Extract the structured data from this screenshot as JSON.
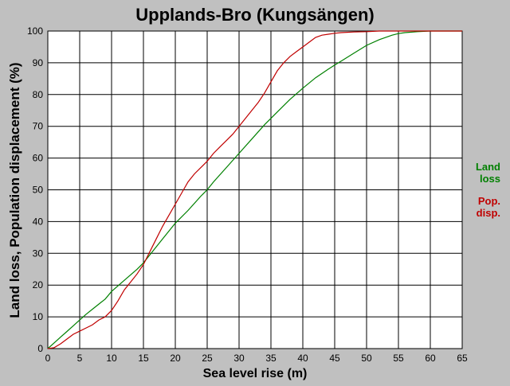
{
  "chart_data": {
    "type": "line",
    "title": "Upplands-Bro (Kungsängen)",
    "xlabel": "Sea level rise (m)",
    "ylabel": "Land loss, Population displacement (%)",
    "xlim": [
      0,
      65
    ],
    "ylim": [
      0,
      100
    ],
    "x_ticks": [
      0,
      5,
      10,
      15,
      20,
      25,
      30,
      35,
      40,
      45,
      50,
      55,
      60,
      65
    ],
    "y_ticks": [
      0,
      10,
      20,
      30,
      40,
      50,
      60,
      70,
      80,
      90,
      100
    ],
    "grid": true,
    "legend_placement": "right",
    "series": [
      {
        "name": "Land loss",
        "legend_lines": [
          "Land",
          "loss"
        ],
        "color": "#008000",
        "x": [
          0,
          1,
          2,
          3,
          4,
          5,
          6,
          7,
          8,
          9,
          10,
          12,
          14,
          15,
          16,
          18,
          20,
          22,
          24,
          25,
          26,
          28,
          30,
          32,
          34,
          35,
          36,
          38,
          40,
          42,
          44,
          45,
          46,
          48,
          50,
          52,
          54,
          55,
          56,
          58,
          60,
          62,
          65
        ],
        "y": [
          0,
          1.8,
          3.6,
          5.4,
          7.2,
          9,
          10.8,
          12.4,
          14,
          15.6,
          18,
          21.5,
          25,
          27,
          29.5,
          34.5,
          39.5,
          43.5,
          48,
          50,
          52.5,
          57,
          61.5,
          66,
          70.5,
          72.5,
          74.5,
          78.5,
          82,
          85.3,
          88,
          89.3,
          90.5,
          93,
          95.5,
          97.3,
          98.7,
          99.2,
          99.5,
          99.8,
          100,
          100,
          100
        ]
      },
      {
        "name": "Pop. disp.",
        "legend_lines": [
          "Pop.",
          "disp."
        ],
        "color": "#c00000",
        "x": [
          0,
          1,
          2,
          3,
          4,
          5,
          6,
          7,
          8,
          9,
          10,
          11,
          12,
          13,
          14,
          15,
          16,
          17,
          18,
          19,
          20,
          21,
          22,
          23,
          24,
          25,
          26,
          27,
          28,
          29,
          30,
          31,
          32,
          33,
          34,
          35,
          36,
          37,
          38,
          39,
          40,
          41,
          42,
          43,
          44,
          45,
          46,
          48,
          50,
          52,
          55,
          60,
          65
        ],
        "y": [
          0,
          0.3,
          1.5,
          3,
          4.5,
          5.5,
          6.5,
          7.5,
          9,
          10,
          12,
          15,
          18.5,
          21,
          23.5,
          26.5,
          30.5,
          34.5,
          38.5,
          42,
          45.5,
          49,
          52.5,
          55,
          57,
          59,
          61.5,
          63.5,
          65.5,
          67.5,
          70,
          72.5,
          75,
          77.5,
          80.5,
          84,
          87.5,
          90,
          92,
          93.5,
          95,
          96.5,
          98,
          98.7,
          99,
          99.3,
          99.5,
          99.7,
          99.8,
          100,
          100,
          100,
          100
        ]
      }
    ]
  }
}
